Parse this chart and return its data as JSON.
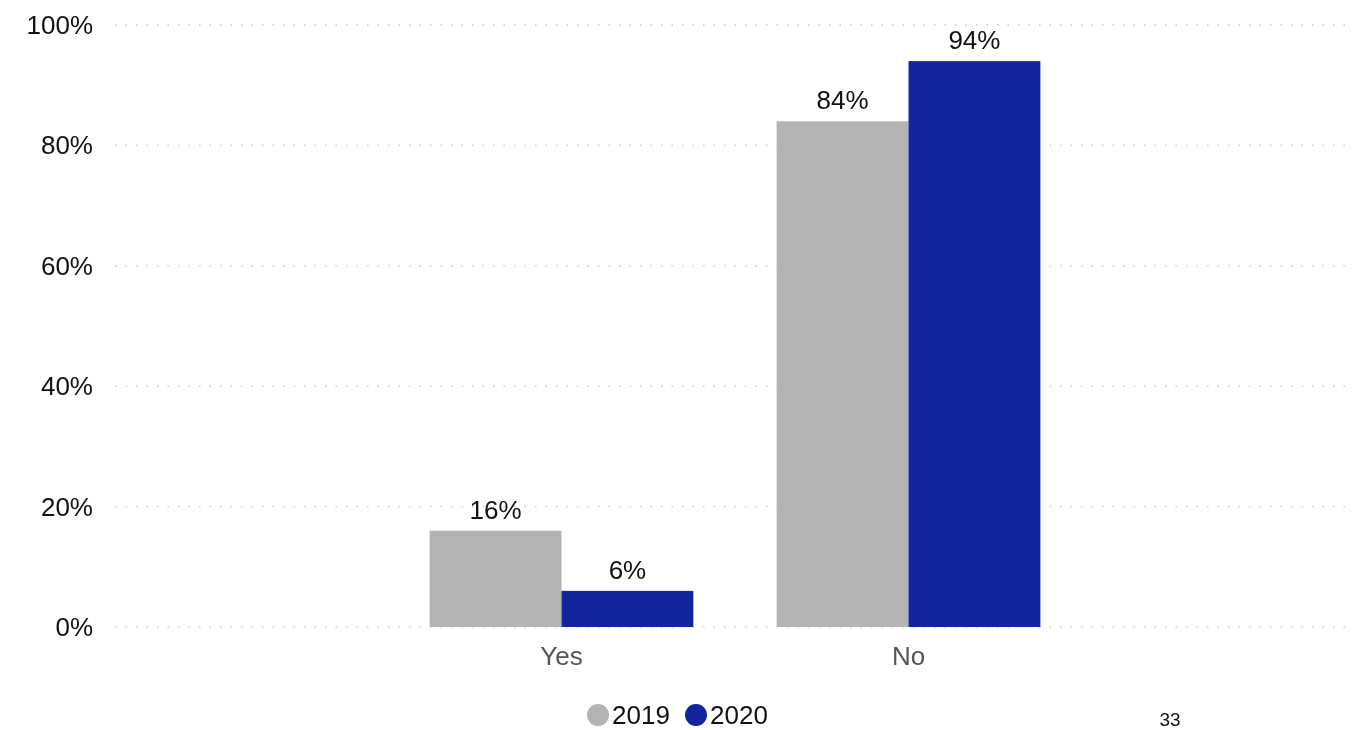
{
  "chart_data": {
    "type": "bar",
    "categories": [
      "Yes",
      "No"
    ],
    "series": [
      {
        "name": "2019",
        "color": "#b3b3b3",
        "values": [
          16,
          84
        ],
        "value_labels": [
          "16%",
          "84%"
        ]
      },
      {
        "name": "2020",
        "color": "#12259e",
        "values": [
          6,
          94
        ],
        "value_labels": [
          "6%",
          "94%"
        ]
      }
    ],
    "ylim": [
      0,
      100
    ],
    "yticks": [
      {
        "value": 0,
        "label": "0%"
      },
      {
        "value": 20,
        "label": "20%"
      },
      {
        "value": 40,
        "label": "40%"
      },
      {
        "value": 60,
        "label": "60%"
      },
      {
        "value": 80,
        "label": "80%"
      },
      {
        "value": 100,
        "label": "100%"
      }
    ],
    "grid": "y",
    "legend": "bottom",
    "annotations": [
      "33"
    ]
  }
}
